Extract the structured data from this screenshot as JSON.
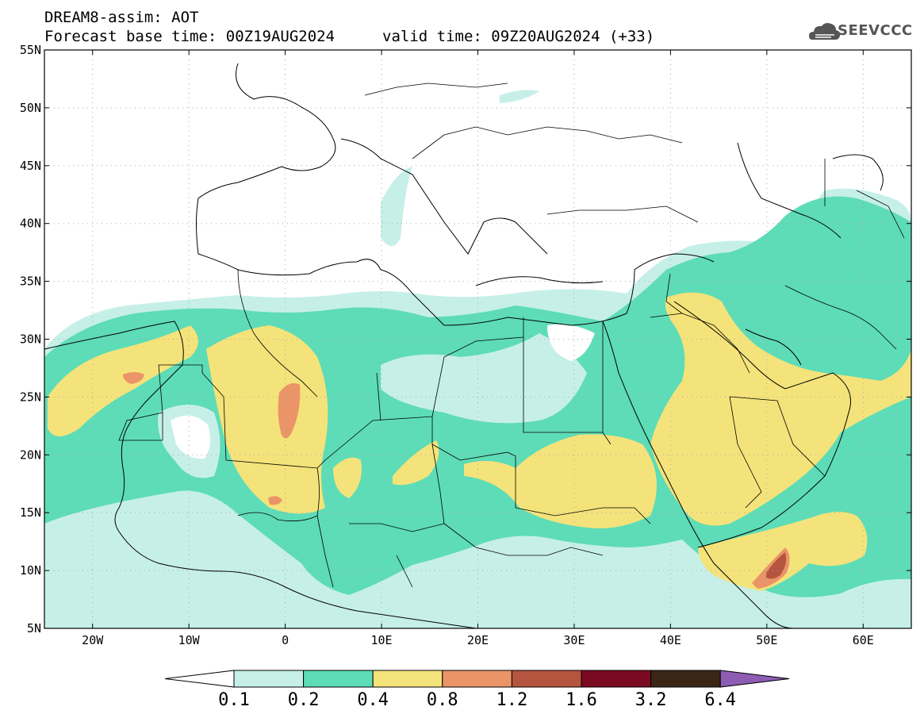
{
  "header": {
    "line1": "DREAM8-assim: AOT",
    "line2": "Forecast base time: 00Z19AUG2024",
    "line2b": "valid time: 09Z20AUG2024 (+33)",
    "logo": "SEEVCCC"
  },
  "map": {
    "lon_range": [
      -25,
      65
    ],
    "lat_range": [
      5,
      55
    ],
    "lon_ticks": [
      "20W",
      "10W",
      "0",
      "10E",
      "20E",
      "30E",
      "40E",
      "50E",
      "60E"
    ],
    "lat_ticks": [
      "55N",
      "50N",
      "45N",
      "40N",
      "35N",
      "30N",
      "25N",
      "20N",
      "15N",
      "10N",
      "5N"
    ],
    "grid": true
  },
  "colorbar": {
    "labels": [
      "0.1",
      "0.2",
      "0.4",
      "0.8",
      "1.2",
      "1.6",
      "3.2",
      "6.4"
    ],
    "colors": [
      "#c6efe8",
      "#5ddcb7",
      "#f4e37a",
      "#ea9468",
      "#b5543f",
      "#7a0a22",
      "#3b2616",
      "#8e5db3"
    ]
  },
  "field_colors": {
    "c1": "#c6efe8",
    "c2": "#5ddcb7",
    "c3": "#f4e37a",
    "c4": "#ea9468",
    "c5": "#b5543f"
  }
}
